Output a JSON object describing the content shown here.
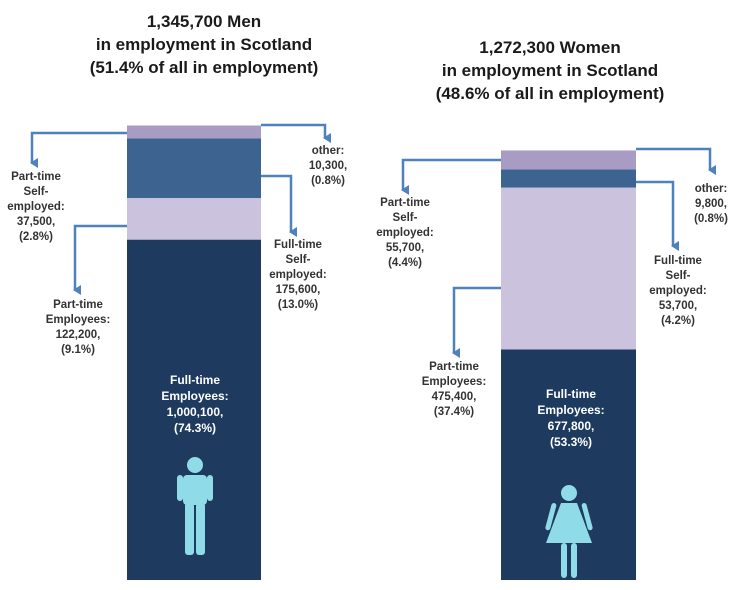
{
  "colors": {
    "full_time_employees": "#1e3a5f",
    "part_time_employees": "#cbc3dd",
    "full_time_self_employed": "#3d6490",
    "part_time_self_employed": "#a89cc4",
    "other": "#ffffff",
    "arrow": "#4f81bd",
    "figure": "#8fdbe8"
  },
  "chart_data": [
    {
      "type": "stacked-bar",
      "title": [
        "1,345,700 Men",
        "in employment in Scotland",
        "(51.4% of all in employment)"
      ],
      "figure_icon": "man-icon",
      "segments": [
        {
          "key": "full_time_employees",
          "label": [
            "Full-time",
            "Employees:",
            "1,000,100,",
            "(74.3%)"
          ],
          "value": 1000100,
          "percent": 74.3
        },
        {
          "key": "part_time_employees",
          "label": [
            "Part-time",
            "Employees:",
            "122,200,",
            "(9.1%)"
          ],
          "value": 122200,
          "percent": 9.1
        },
        {
          "key": "full_time_self_employed",
          "label": [
            "Full-time",
            "Self-",
            "employed:",
            "175,600,",
            "(13.0%)"
          ],
          "value": 175600,
          "percent": 13.0
        },
        {
          "key": "part_time_self_employed",
          "label": [
            "Part-time",
            "Self-",
            "employed:",
            "37,500,",
            "(2.8%)"
          ],
          "value": 37500,
          "percent": 2.8
        },
        {
          "key": "other",
          "label": [
            "other:",
            "10,300,",
            "(0.8%)"
          ],
          "value": 10300,
          "percent": 0.8
        }
      ]
    },
    {
      "type": "stacked-bar",
      "title": [
        "1,272,300 Women",
        "in employment in Scotland",
        "(48.6% of all in employment)"
      ],
      "figure_icon": "woman-icon",
      "segments": [
        {
          "key": "full_time_employees",
          "label": [
            "Full-time",
            "Employees:",
            "677,800,",
            "(53.3%)"
          ],
          "value": 677800,
          "percent": 53.3
        },
        {
          "key": "part_time_employees",
          "label": [
            "Part-time",
            "Employees:",
            "475,400,",
            "(37.4%)"
          ],
          "value": 475400,
          "percent": 37.4
        },
        {
          "key": "full_time_self_employed",
          "label": [
            "Full-time",
            "Self-",
            "employed:",
            "53,700,",
            "(4.2%)"
          ],
          "value": 53700,
          "percent": 4.2
        },
        {
          "key": "part_time_self_employed",
          "label": [
            "Part-time",
            "Self-",
            "employed:",
            "55,700,",
            "(4.4%)"
          ],
          "value": 55700,
          "percent": 4.4
        },
        {
          "key": "other",
          "label": [
            "other:",
            "9,800,",
            "(0.8%)"
          ],
          "value": 9800,
          "percent": 0.8
        }
      ]
    }
  ]
}
